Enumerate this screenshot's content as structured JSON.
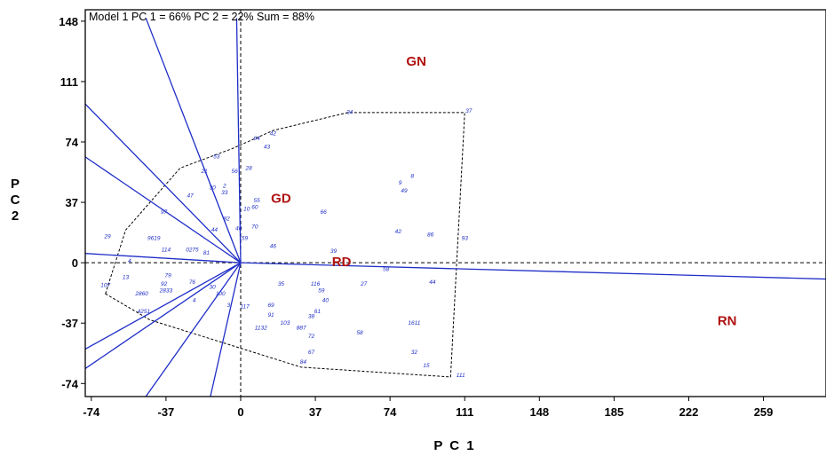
{
  "chart_data": {
    "type": "scatter",
    "title": "Model 1 PC 1 = 66% PC 2 = 22% Sum = 88%",
    "xlabel": "P C 1",
    "ylabel": "P C 2",
    "xlim": [
      -77,
      290
    ],
    "ylim": [
      -82,
      155
    ],
    "xticks": [
      -74,
      -37,
      0,
      37,
      74,
      111,
      148,
      185,
      222,
      259
    ],
    "yticks": [
      -74,
      -37,
      0,
      37,
      74,
      111,
      148
    ],
    "grid": false,
    "colors": {
      "vectors": "#1f2ec7",
      "environments": "#b01010",
      "genotypes": "#1f2ec7",
      "hull": "#000000"
    },
    "environments": [
      {
        "name": "GN",
        "x": 87,
        "y": 123,
        "vx": -47,
        "vy": 120
      },
      {
        "name": "GD",
        "x": 20,
        "y": 39,
        "vx": -95,
        "vy": 80
      },
      {
        "name": "RD",
        "x": 50,
        "y": 0,
        "vx": -80,
        "vy": -55
      },
      {
        "name": "RN",
        "x": 241,
        "y": -36,
        "vx": 290,
        "vy": -10
      }
    ],
    "vectors": [
      {
        "x": -47,
        "y": 150
      },
      {
        "x": -95,
        "y": 120
      },
      {
        "x": -95,
        "y": 80
      },
      {
        "x": -95,
        "y": 7
      },
      {
        "x": -95,
        "y": -80
      },
      {
        "x": -80,
        "y": -55
      },
      {
        "x": -47,
        "y": -82
      },
      {
        "x": -15,
        "y": -82
      },
      {
        "x": -2,
        "y": 150
      },
      {
        "x": 290,
        "y": -10
      }
    ],
    "hull": [
      [
        -67,
        -19
      ],
      [
        -57,
        20
      ],
      [
        -30,
        58
      ],
      [
        -4,
        70
      ],
      [
        16,
        81
      ],
      [
        53,
        92
      ],
      [
        111,
        92
      ],
      [
        104,
        -70
      ],
      [
        30,
        -64
      ],
      [
        -45,
        -35
      ]
    ],
    "genotypes": [
      {
        "label": "34",
        "x": 54,
        "y": 91
      },
      {
        "label": "37",
        "x": 113,
        "y": 92
      },
      {
        "label": "64",
        "x": 8,
        "y": 75
      },
      {
        "label": "42",
        "x": 16,
        "y": 78
      },
      {
        "label": "43",
        "x": 13,
        "y": 70
      },
      {
        "label": "53",
        "x": -12,
        "y": 64
      },
      {
        "label": "28",
        "x": 4,
        "y": 57
      },
      {
        "label": "56",
        "x": -3,
        "y": 55
      },
      {
        "label": "21",
        "x": -18,
        "y": 55
      },
      {
        "label": "30",
        "x": -14,
        "y": 45
      },
      {
        "label": "2",
        "x": -8,
        "y": 46
      },
      {
        "label": "47",
        "x": -25,
        "y": 40
      },
      {
        "label": "33",
        "x": -8,
        "y": 42
      },
      {
        "label": "8",
        "x": 85,
        "y": 52
      },
      {
        "label": "9",
        "x": 79,
        "y": 48
      },
      {
        "label": "49",
        "x": 81,
        "y": 43
      },
      {
        "label": "55",
        "x": 8,
        "y": 37
      },
      {
        "label": "60",
        "x": 7,
        "y": 33
      },
      {
        "label": "10",
        "x": 3,
        "y": 32
      },
      {
        "label": "66",
        "x": 41,
        "y": 30
      },
      {
        "label": "97",
        "x": -38,
        "y": 30
      },
      {
        "label": "82",
        "x": -7,
        "y": 26
      },
      {
        "label": "70",
        "x": 7,
        "y": 21
      },
      {
        "label": "40",
        "x": -1,
        "y": 20
      },
      {
        "label": "44",
        "x": -13,
        "y": 19
      },
      {
        "label": "59",
        "x": 2,
        "y": 14
      },
      {
        "label": "42",
        "x": 78,
        "y": 18
      },
      {
        "label": "86",
        "x": 94,
        "y": 16
      },
      {
        "label": "93",
        "x": 111,
        "y": 14
      },
      {
        "label": "46",
        "x": 16,
        "y": 9
      },
      {
        "label": "39",
        "x": 46,
        "y": 6
      },
      {
        "label": "29",
        "x": -66,
        "y": 15
      },
      {
        "label": "9619",
        "x": -43,
        "y": 14
      },
      {
        "label": "114",
        "x": -37,
        "y": 7
      },
      {
        "label": "0275",
        "x": -24,
        "y": 7
      },
      {
        "label": "81",
        "x": -17,
        "y": 5
      },
      {
        "label": "58",
        "x": 72,
        "y": -5
      },
      {
        "label": "27",
        "x": 61,
        "y": -14
      },
      {
        "label": "44",
        "x": 95,
        "y": -13
      },
      {
        "label": "35",
        "x": 20,
        "y": -14
      },
      {
        "label": "116",
        "x": 37,
        "y": -14
      },
      {
        "label": "59",
        "x": 40,
        "y": -18
      },
      {
        "label": "40",
        "x": 42,
        "y": -24
      },
      {
        "label": "4",
        "x": -55,
        "y": 0
      },
      {
        "label": "13",
        "x": -57,
        "y": -10
      },
      {
        "label": "107",
        "x": -67,
        "y": -15
      },
      {
        "label": "79",
        "x": -36,
        "y": -9
      },
      {
        "label": "92",
        "x": -38,
        "y": -14
      },
      {
        "label": "76",
        "x": -24,
        "y": -13
      },
      {
        "label": "30",
        "x": -14,
        "y": -16
      },
      {
        "label": "2860",
        "x": -49,
        "y": -20
      },
      {
        "label": "2833",
        "x": -37,
        "y": -18
      },
      {
        "label": "100",
        "x": -10,
        "y": -20
      },
      {
        "label": "4",
        "x": -23,
        "y": -24
      },
      {
        "label": "3",
        "x": -6,
        "y": -27
      },
      {
        "label": "117",
        "x": 2,
        "y": -28
      },
      {
        "label": "69",
        "x": 15,
        "y": -27
      },
      {
        "label": "91",
        "x": 15,
        "y": -33
      },
      {
        "label": "61",
        "x": 38,
        "y": -31
      },
      {
        "label": "38",
        "x": 35,
        "y": -34
      },
      {
        "label": "103",
        "x": 22,
        "y": -38
      },
      {
        "label": "887",
        "x": 30,
        "y": -41
      },
      {
        "label": "1132",
        "x": 10,
        "y": -41
      },
      {
        "label": "72",
        "x": 35,
        "y": -46
      },
      {
        "label": "58",
        "x": 59,
        "y": -44
      },
      {
        "label": "1611",
        "x": 86,
        "y": -38
      },
      {
        "label": "4251",
        "x": -48,
        "y": -31
      },
      {
        "label": "67",
        "x": 35,
        "y": -56
      },
      {
        "label": "84",
        "x": 31,
        "y": -62
      },
      {
        "label": "32",
        "x": 86,
        "y": -56
      },
      {
        "label": "15",
        "x": 92,
        "y": -64
      },
      {
        "label": "111",
        "x": 109,
        "y": -70
      }
    ]
  }
}
